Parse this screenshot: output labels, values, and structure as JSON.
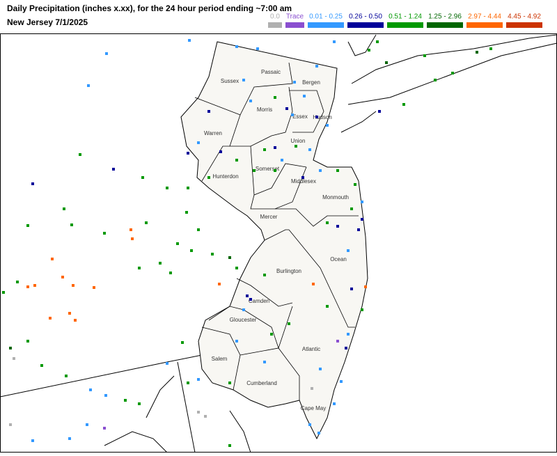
{
  "header": {
    "title": "Daily Precipitation (inches  x.xx),  for the 24 hour period ending ~7:00 am",
    "subtitle": "New Jersey 7/1/2025"
  },
  "legend": [
    {
      "label": "0.0",
      "color": "#b0b0b0"
    },
    {
      "label": "Trace",
      "color": "#8a4fd0"
    },
    {
      "label": "0.01 - 0.25",
      "color": "#3399ff"
    },
    {
      "label": "0.26 - 0.50",
      "color": "#000099"
    },
    {
      "label": "0.51 - 1.24",
      "color": "#009900"
    },
    {
      "label": "1.25 - 2.96",
      "color": "#006600"
    },
    {
      "label": "2.97 - 4.44",
      "color": "#ff6600"
    },
    {
      "label": "4.45 - 4.92",
      "color": "#cc3300"
    }
  ],
  "counties": [
    "Sussex",
    "Passaic",
    "Bergen",
    "Morris",
    "Essex",
    "Hudson",
    "Warren",
    "Union",
    "Somerset",
    "Hunterdon",
    "Middlesex",
    "Monmouth",
    "Mercer",
    "Ocean",
    "Burlington",
    "Camden",
    "Gloucester",
    "Atlantic",
    "Salem",
    "Cumberland",
    "Cape May"
  ]
}
